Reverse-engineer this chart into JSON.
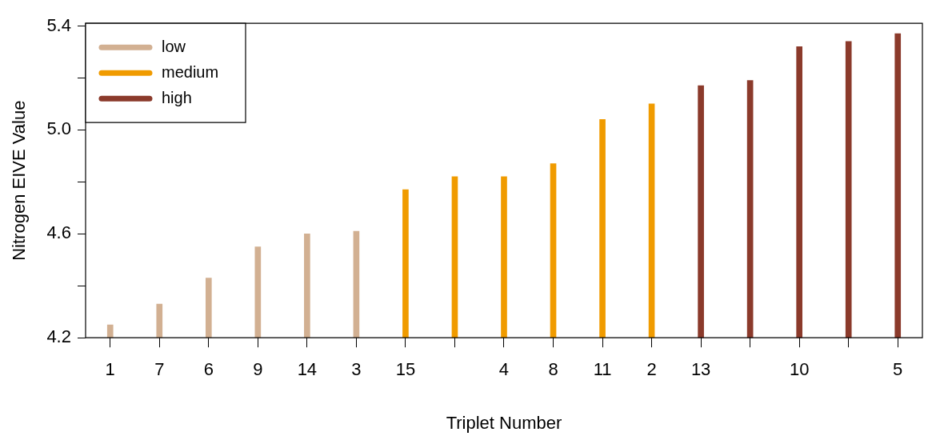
{
  "chart_data": {
    "type": "bar",
    "xlabel": "Triplet Number",
    "ylabel": "Nitrogen EIVE Value",
    "categories": [
      "1",
      "7",
      "6",
      "9",
      "14",
      "3",
      "15",
      null,
      "4",
      "8",
      "11",
      "2",
      "13",
      null,
      "10",
      null,
      "5"
    ],
    "series": [
      {
        "name": "low",
        "color": "#d2b092",
        "values": [
          4.25,
          4.33,
          4.43,
          4.55,
          4.6,
          4.61,
          null,
          null,
          null,
          null,
          null,
          null,
          null,
          null,
          null,
          null,
          null
        ]
      },
      {
        "name": "medium",
        "color": "#f09b00",
        "values": [
          null,
          null,
          null,
          null,
          null,
          null,
          4.77,
          4.82,
          4.82,
          4.87,
          5.04,
          5.1,
          null,
          null,
          null,
          null,
          null
        ]
      },
      {
        "name": "high",
        "color": "#8b3a2b",
        "values": [
          null,
          null,
          null,
          null,
          null,
          null,
          null,
          null,
          null,
          null,
          null,
          null,
          5.17,
          5.19,
          5.32,
          5.34,
          5.37
        ]
      }
    ],
    "ylim": [
      4.2,
      5.41
    ],
    "yticks": [
      4.2,
      {
        "value": 4.4,
        "label": null
      },
      4.6,
      {
        "value": 4.8,
        "label": null
      },
      {
        "value": 5,
        "label": "5.0"
      },
      {
        "value": 5.2,
        "label": null
      },
      5.4
    ],
    "legend": "top left",
    "grid": false
  }
}
